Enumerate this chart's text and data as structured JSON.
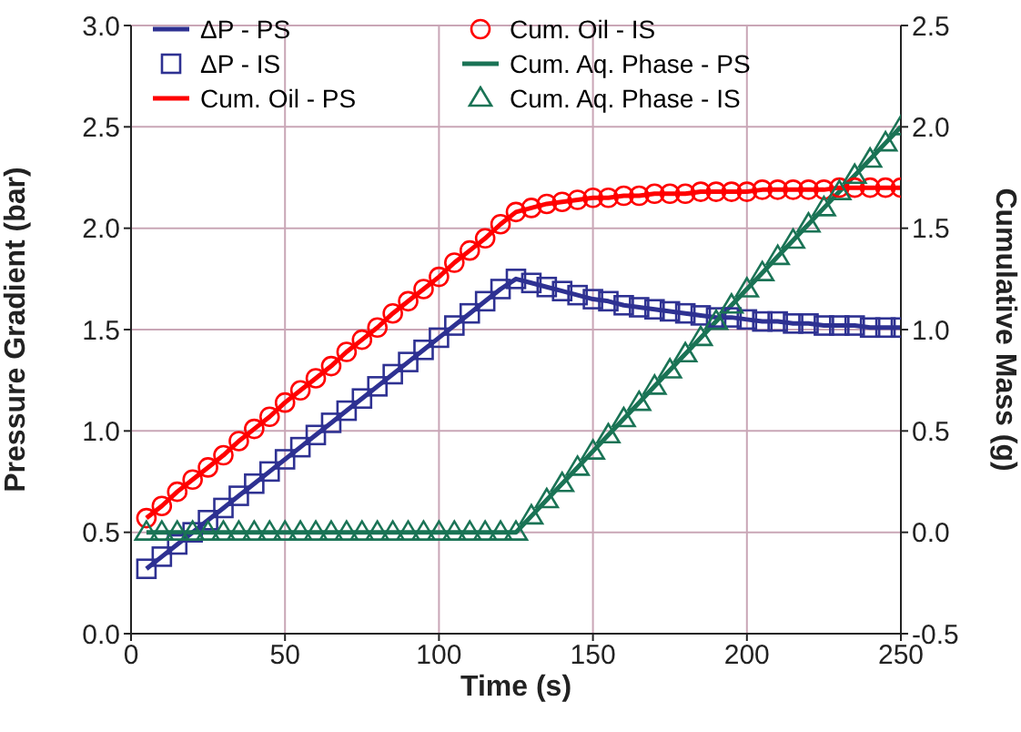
{
  "chart_data": {
    "type": "line",
    "xlabel": "Time (s)",
    "ylabel": "Pressure Gradient (bar)",
    "y2label": "Cumulative Mass (g)",
    "x": [
      5,
      10,
      15,
      20,
      25,
      30,
      35,
      40,
      45,
      50,
      55,
      60,
      65,
      70,
      75,
      80,
      85,
      90,
      95,
      100,
      105,
      110,
      115,
      120,
      125,
      130,
      135,
      140,
      145,
      150,
      155,
      160,
      165,
      170,
      175,
      180,
      185,
      190,
      195,
      200,
      205,
      210,
      215,
      220,
      225,
      230,
      235,
      240,
      245,
      250
    ],
    "xlim": [
      0,
      250
    ],
    "xticks": [
      0,
      50,
      100,
      150,
      200,
      250
    ],
    "ylim": [
      0,
      3
    ],
    "yticks": [
      {
        "value": 0,
        "label": "0.0"
      },
      0.5,
      {
        "value": 1,
        "label": "1.0"
      },
      1.5,
      {
        "value": 2,
        "label": "2.0"
      },
      2.5,
      {
        "value": 3,
        "label": "3.0"
      }
    ],
    "y2lim": [
      -0.5,
      2.5
    ],
    "y2ticks": [
      -0.5,
      {
        "value": 0,
        "label": "0.0"
      },
      0.5,
      {
        "value": 1,
        "label": "1.0"
      },
      1.5,
      {
        "value": 2,
        "label": "2.0"
      },
      2.5
    ],
    "grid": true,
    "legend": "top left",
    "series": [
      {
        "name": "ΔP - PS",
        "marker": "none",
        "color": "#2e3192",
        "values": [
          0.32,
          0.38,
          0.44,
          0.5,
          0.56,
          0.62,
          0.68,
          0.74,
          0.8,
          0.86,
          0.92,
          0.98,
          1.04,
          1.1,
          1.16,
          1.22,
          1.28,
          1.34,
          1.4,
          1.46,
          1.52,
          1.58,
          1.64,
          1.7,
          1.75,
          1.73,
          1.71,
          1.69,
          1.67,
          1.65,
          1.64,
          1.62,
          1.61,
          1.6,
          1.59,
          1.58,
          1.57,
          1.56,
          1.56,
          1.55,
          1.54,
          1.54,
          1.53,
          1.53,
          1.52,
          1.52,
          1.52,
          1.51,
          1.51,
          1.51
        ]
      },
      {
        "name": "Cum. Oil - IS",
        "type": "scatter",
        "marker": "circle",
        "axis": "y2",
        "color": "#ff0000",
        "values": [
          0.07,
          0.13,
          0.2,
          0.26,
          0.32,
          0.38,
          0.45,
          0.51,
          0.57,
          0.64,
          0.7,
          0.76,
          0.82,
          0.89,
          0.95,
          1.01,
          1.08,
          1.14,
          1.2,
          1.26,
          1.33,
          1.39,
          1.45,
          1.52,
          1.58,
          1.6,
          1.62,
          1.63,
          1.64,
          1.65,
          1.65,
          1.66,
          1.66,
          1.67,
          1.67,
          1.67,
          1.68,
          1.68,
          1.68,
          1.68,
          1.69,
          1.69,
          1.69,
          1.69,
          1.69,
          1.7,
          1.7,
          1.7,
          1.7,
          1.7
        ]
      },
      {
        "name": "ΔP - IS",
        "type": "scatter",
        "marker": "square",
        "color": "#2e3192",
        "values": [
          0.32,
          0.38,
          0.44,
          0.5,
          0.56,
          0.62,
          0.68,
          0.74,
          0.8,
          0.86,
          0.92,
          0.98,
          1.04,
          1.1,
          1.16,
          1.22,
          1.28,
          1.34,
          1.4,
          1.46,
          1.52,
          1.58,
          1.64,
          1.7,
          1.75,
          1.73,
          1.71,
          1.69,
          1.67,
          1.65,
          1.64,
          1.62,
          1.61,
          1.6,
          1.59,
          1.58,
          1.57,
          1.56,
          1.56,
          1.55,
          1.54,
          1.54,
          1.53,
          1.53,
          1.52,
          1.52,
          1.52,
          1.51,
          1.51,
          1.51
        ]
      },
      {
        "name": "Cum. Aq. Phase - PS",
        "marker": "none",
        "axis": "y2",
        "color": "#1a7355",
        "values": [
          0,
          0,
          0,
          0,
          0,
          0,
          0,
          0,
          0,
          0,
          0,
          0,
          0,
          0,
          0,
          0,
          0,
          0,
          0,
          0,
          0,
          0,
          0,
          0,
          0,
          0.08,
          0.16,
          0.24,
          0.32,
          0.4,
          0.48,
          0.56,
          0.64,
          0.72,
          0.8,
          0.88,
          0.96,
          1.04,
          1.12,
          1.2,
          1.28,
          1.36,
          1.44,
          1.52,
          1.6,
          1.68,
          1.76,
          1.84,
          1.92,
          2.0
        ]
      },
      {
        "name": "Cum. Oil - PS",
        "marker": "none",
        "axis": "y2",
        "color": "#ff0000",
        "values": [
          0.07,
          0.13,
          0.2,
          0.26,
          0.32,
          0.38,
          0.45,
          0.51,
          0.57,
          0.64,
          0.7,
          0.76,
          0.82,
          0.89,
          0.95,
          1.01,
          1.08,
          1.14,
          1.2,
          1.26,
          1.33,
          1.39,
          1.45,
          1.52,
          1.58,
          1.6,
          1.62,
          1.63,
          1.64,
          1.65,
          1.65,
          1.66,
          1.66,
          1.67,
          1.67,
          1.67,
          1.68,
          1.68,
          1.68,
          1.68,
          1.69,
          1.69,
          1.69,
          1.69,
          1.69,
          1.7,
          1.7,
          1.7,
          1.7,
          1.7
        ]
      },
      {
        "name": "Cum. Aq. Phase - IS",
        "type": "scatter",
        "marker": "triangle",
        "axis": "y2",
        "color": "#1a7355",
        "values": [
          0,
          0,
          0,
          0,
          0,
          0,
          0,
          0,
          0,
          0,
          0,
          0,
          0,
          0,
          0,
          0,
          0,
          0,
          0,
          0,
          0,
          0,
          0,
          0,
          0,
          0.08,
          0.16,
          0.24,
          0.32,
          0.4,
          0.48,
          0.56,
          0.64,
          0.72,
          0.8,
          0.88,
          0.96,
          1.04,
          1.12,
          1.2,
          1.28,
          1.36,
          1.44,
          1.52,
          1.6,
          1.68,
          1.76,
          1.84,
          1.92,
          2.0
        ]
      }
    ]
  }
}
